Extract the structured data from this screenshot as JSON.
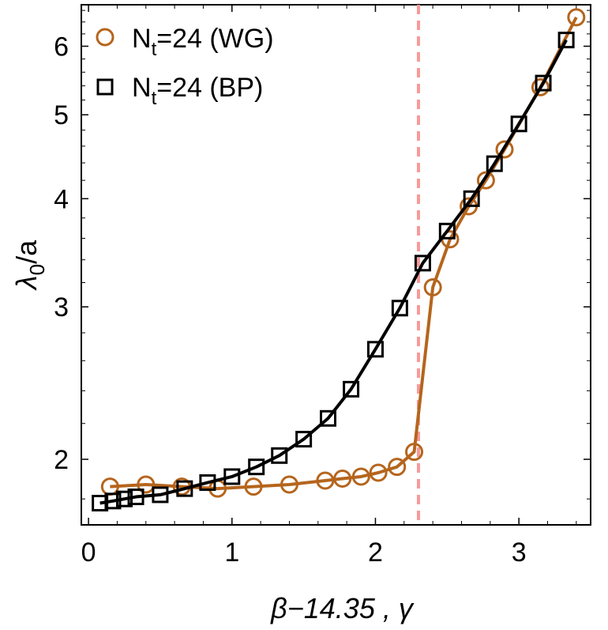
{
  "chart_data": {
    "type": "line",
    "title": "",
    "xlabel": "β−14.35 , γ",
    "ylabel": "λ0/a",
    "ylabel_main": "λ",
    "ylabel_sub": "0",
    "ylabel_rest": "/a",
    "xlim": [
      -0.05,
      3.5
    ],
    "ylim": [
      1.68,
      6.7
    ],
    "y_scale": "log",
    "x_ticks": [
      0,
      1,
      2,
      3
    ],
    "x_tick_labels": [
      "0",
      "1",
      "2",
      "3"
    ],
    "y_ticks": [
      2,
      3,
      4,
      5,
      6
    ],
    "y_tick_labels": [
      "2",
      "3",
      "4",
      "5",
      "6"
    ],
    "grid": false,
    "legend_position": "top-left",
    "vline": {
      "x": 2.3,
      "color": "#f79a9a",
      "style": "dashed"
    },
    "series": [
      {
        "name": "Nt=24 (WG)",
        "legend_main": "N",
        "legend_sub": "t",
        "legend_rest": "=24 (WG)",
        "marker": "circle",
        "color": "#b5651d",
        "x": [
          0.15,
          0.4,
          0.65,
          0.9,
          1.15,
          1.4,
          1.65,
          1.77,
          1.9,
          2.02,
          2.15,
          2.27,
          2.4,
          2.52,
          2.65,
          2.77,
          2.9,
          3.15,
          3.4
        ],
        "y": [
          1.86,
          1.87,
          1.86,
          1.85,
          1.86,
          1.87,
          1.89,
          1.9,
          1.91,
          1.93,
          1.96,
          2.04,
          3.16,
          3.59,
          3.92,
          4.2,
          4.56,
          5.38,
          6.48
        ]
      },
      {
        "name": "Nt=24 (BP)",
        "legend_main": "N",
        "legend_sub": "t",
        "legend_rest": "=24 (BP)",
        "marker": "square",
        "color": "#000000",
        "x": [
          0.08,
          0.17,
          0.25,
          0.33,
          0.5,
          0.67,
          0.83,
          1.0,
          1.17,
          1.33,
          1.5,
          1.67,
          1.83,
          2.0,
          2.17,
          2.33,
          2.5,
          2.67,
          2.83,
          3.0,
          3.17,
          3.33
        ],
        "y": [
          1.78,
          1.79,
          1.8,
          1.81,
          1.82,
          1.85,
          1.88,
          1.91,
          1.96,
          2.02,
          2.11,
          2.23,
          2.41,
          2.68,
          2.99,
          3.37,
          3.67,
          4.0,
          4.39,
          4.88,
          5.44,
          6.1
        ]
      }
    ]
  }
}
